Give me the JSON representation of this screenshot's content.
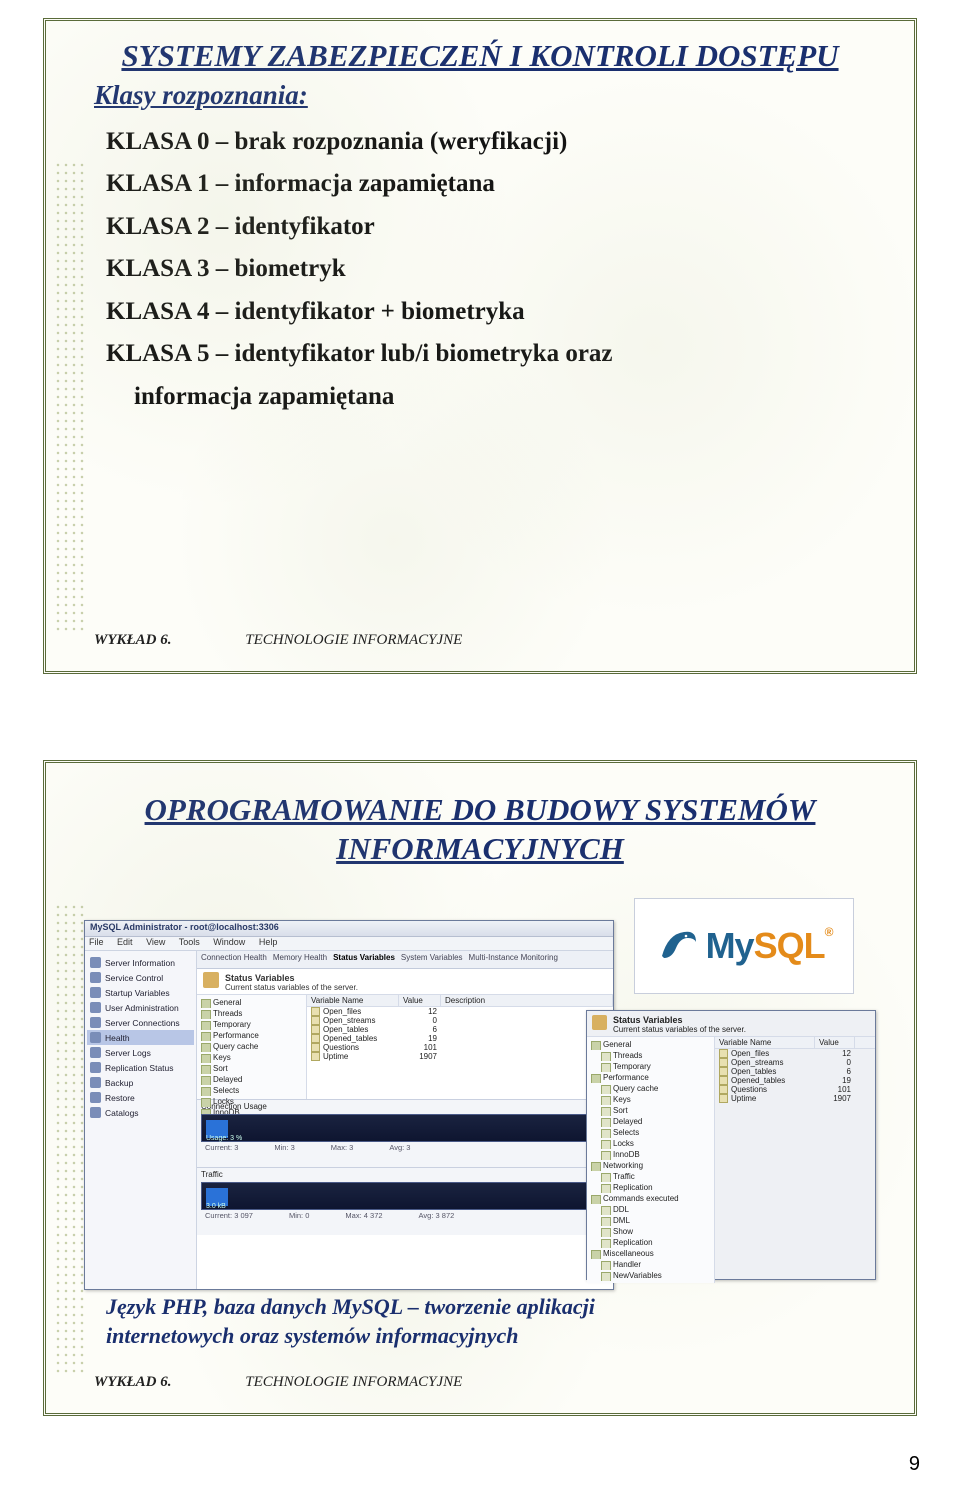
{
  "page_number": "9",
  "footer": {
    "lecture": "WYKŁAD 6.",
    "course": "TECHNOLOGIE INFORMACYJNE"
  },
  "slide1": {
    "title": "SYSTEMY ZABEZPIECZEŃ I KONTROLI DOSTĘPU",
    "subtitle": "Klasy rozpoznania:",
    "lines": [
      "KLASA 0 – brak rozpoznania (weryfikacji)",
      "KLASA 1 – informacja zapamiętana",
      "KLASA 2 – identyfikator",
      "KLASA 3 – biometryk",
      "KLASA 4 – identyfikator + biometryka",
      "KLASA 5 – identyfikator lub/i biometryka oraz"
    ],
    "line_indent": "informacja zapamiętana"
  },
  "slide2": {
    "title": "OPROGRAMOWANIE DO BUDOWY SYSTEMÓW INFORMACYJNYCH",
    "caption1": "Język PHP, baza danych MySQL – tworzenie aplikacji",
    "caption2": "internetowych oraz systemów informacyjnych",
    "mysql": {
      "my": "My",
      "sql": "SQL",
      "tm": "®"
    },
    "main_win": {
      "title": "MySQL Administrator - root@localhost:3306",
      "menu": [
        "File",
        "Edit",
        "View",
        "Tools",
        "Window",
        "Help"
      ],
      "sidebar": [
        "Server Information",
        "Service Control",
        "Startup Variables",
        "User Administration",
        "Server Connections",
        "Health",
        "Server Logs",
        "Replication Status",
        "Backup",
        "Restore",
        "Catalogs"
      ],
      "sidebar_selected_index": 5,
      "tabs": [
        "Connection Health",
        "Memory Health",
        "Status Variables",
        "System Variables",
        "Multi-Instance Monitoring"
      ],
      "tab_active_index": 2,
      "status_title": "Status Variables",
      "status_sub": "Current status variables of the server.",
      "tree": [
        "General",
        "Threads",
        "Temporary",
        "Performance",
        "Query cache",
        "Keys",
        "Sort",
        "Delayed",
        "Selects",
        "Locks",
        "InnoDB"
      ],
      "var_headers": {
        "name": "Variable Name",
        "value": "Value",
        "desc": "Description"
      },
      "vars": [
        {
          "name": "Open_files",
          "value": "12"
        },
        {
          "name": "Open_streams",
          "value": "0"
        },
        {
          "name": "Open_tables",
          "value": "6"
        },
        {
          "name": "Opened_tables",
          "value": "19"
        },
        {
          "name": "Questions",
          "value": "101"
        },
        {
          "name": "Uptime",
          "value": "1907"
        }
      ],
      "conn_label": "Connection Usage",
      "usage_label": "Usage: 3 %",
      "graph_legend": {
        "current": "Current:",
        "min": "Min:",
        "max": "Max:",
        "avg": "Avg:"
      },
      "graph_vals1": {
        "current": "3",
        "min": "3",
        "max": "3",
        "avg": "3"
      },
      "traffic_label": "Traffic",
      "traffic_val": "3.0 kB",
      "graph_vals2": {
        "current": "3 097",
        "min": "Min:",
        "min_v": "0",
        "max": "Max:",
        "max_v": "4 372",
        "avg": "Avg:",
        "avg_v": "3 872"
      }
    },
    "small_win": {
      "status_title": "Status Variables",
      "status_sub": "Current status variables of the server.",
      "var_headers": {
        "name": "Variable Name",
        "value": "Value"
      },
      "tree": [
        "General",
        " Threads",
        " Temporary",
        "Performance",
        " Query cache",
        " Keys",
        " Sort",
        " Delayed",
        " Selects",
        " Locks",
        " InnoDB",
        "Networking",
        " Traffic",
        " Replication",
        "Commands executed",
        " DDL",
        " DML",
        " Show",
        " Replication",
        "Miscellaneous",
        " Handler",
        " NewVariables"
      ],
      "vars": [
        {
          "name": "Open_files",
          "value": "12"
        },
        {
          "name": "Open_streams",
          "value": "0"
        },
        {
          "name": "Open_tables",
          "value": "6"
        },
        {
          "name": "Opened_tables",
          "value": "19"
        },
        {
          "name": "Questions",
          "value": "101"
        },
        {
          "name": "Uptime",
          "value": "1907"
        }
      ]
    }
  }
}
